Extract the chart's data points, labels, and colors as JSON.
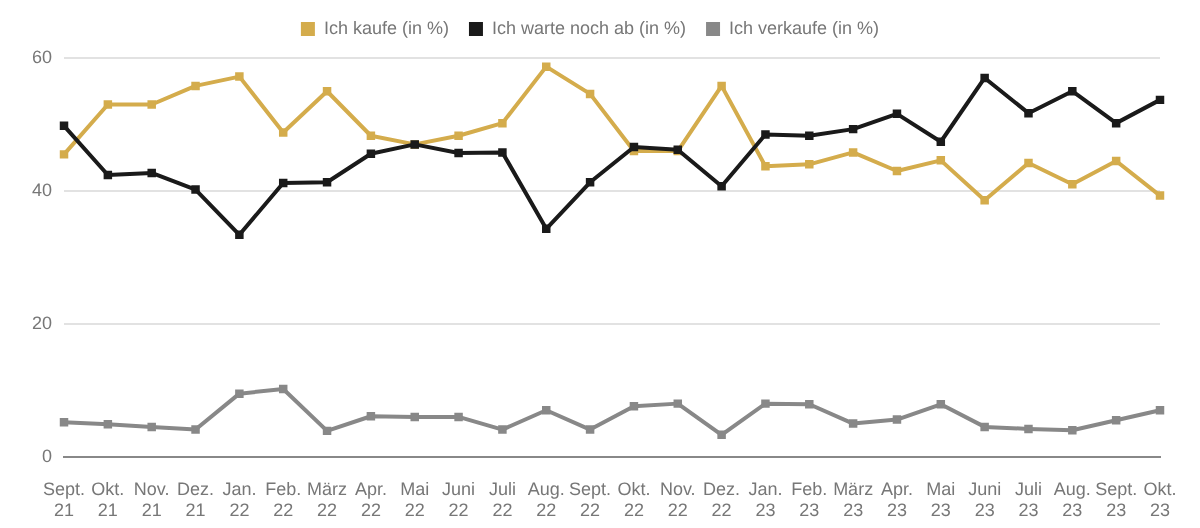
{
  "chart_data": {
    "type": "line",
    "categories": [
      "Sept. 21",
      "Okt. 21",
      "Nov. 21",
      "Dez. 21",
      "Jan. 22",
      "Feb. 22",
      "März 22",
      "Apr. 22",
      "Mai 22",
      "Juni 22",
      "Juli 22",
      "Aug. 22",
      "Sept. 22",
      "Okt. 22",
      "Nov. 22",
      "Dez. 22",
      "Jan. 23",
      "Feb. 23",
      "März 23",
      "Apr. 23",
      "Mai 23",
      "Juni 23",
      "Juli 23",
      "Aug. 23",
      "Sept. 23",
      "Okt. 23"
    ],
    "series": [
      {
        "name": "Ich kaufe (in %)",
        "color": "#d4ac4c",
        "values": [
          45.5,
          53,
          53,
          55.8,
          57.2,
          48.8,
          55,
          48.3,
          47,
          48.3,
          50.2,
          58.7,
          54.6,
          46,
          46,
          55.8,
          43.7,
          44,
          45.8,
          43,
          44.6,
          38.6,
          44.2,
          41,
          44.5,
          39.3
        ]
      },
      {
        "name": "Ich warte noch ab (in %)",
        "color": "#1a1a1a",
        "values": [
          49.8,
          42.4,
          42.7,
          40.2,
          33.4,
          41.2,
          41.3,
          45.6,
          47,
          45.7,
          45.8,
          34.3,
          41.3,
          46.6,
          46.2,
          40.7,
          48.5,
          48.3,
          49.3,
          51.6,
          47.4,
          57,
          51.7,
          55,
          50.2,
          53.7
        ]
      },
      {
        "name": "Ich verkaufe (in %)",
        "color": "#888888",
        "values": [
          5.2,
          4.9,
          4.5,
          4.1,
          9.5,
          10.2,
          3.9,
          6.1,
          6,
          6,
          4.1,
          7,
          4.1,
          7.6,
          8,
          3.3,
          8,
          7.9,
          5,
          5.6,
          7.9,
          4.5,
          4.2,
          4,
          5.5,
          7
        ]
      }
    ],
    "ylim": [
      0,
      60
    ],
    "yticks": [
      0,
      20,
      40,
      60
    ],
    "grid": "y",
    "legend": "top",
    "marker": "square",
    "line_style": "solid"
  }
}
